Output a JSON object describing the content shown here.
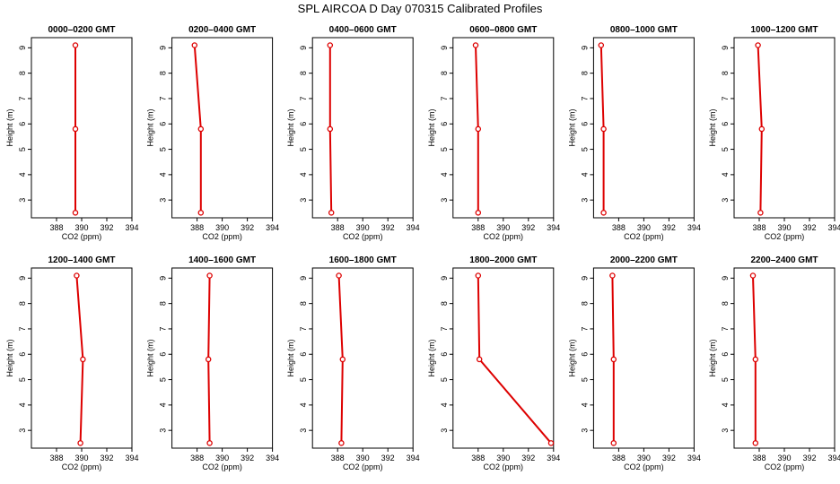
{
  "figure": {
    "title": "SPL AIRCOA D  Day 070315  Calibrated Profiles"
  },
  "colors": {
    "series": "#dd0000",
    "axis": "#000000",
    "background": "#ffffff"
  },
  "chart_data": [
    {
      "type": "line",
      "title": "0000–0200 GMT",
      "xlabel": "CO2 (ppm)",
      "ylabel": "Height (m)",
      "xlim": [
        386,
        394
      ],
      "ylim": [
        2.3,
        9.4
      ],
      "x_ticks": [
        "388",
        "390",
        "392",
        "394"
      ],
      "y_ticks": [
        "3",
        "4",
        "5",
        "6",
        "7",
        "8",
        "9"
      ],
      "series": [
        {
          "x": [
            389.5,
            389.5,
            389.5
          ],
          "y": [
            2.5,
            5.8,
            9.1
          ]
        }
      ]
    },
    {
      "type": "line",
      "title": "0200–0400 GMT",
      "xlabel": "CO2 (ppm)",
      "ylabel": "Height (m)",
      "xlim": [
        386,
        394
      ],
      "ylim": [
        2.3,
        9.4
      ],
      "x_ticks": [
        "388",
        "390",
        "392",
        "394"
      ],
      "y_ticks": [
        "3",
        "4",
        "5",
        "6",
        "7",
        "8",
        "9"
      ],
      "series": [
        {
          "x": [
            388.3,
            388.3,
            387.8
          ],
          "y": [
            2.5,
            5.8,
            9.1
          ]
        }
      ]
    },
    {
      "type": "line",
      "title": "0400–0600 GMT",
      "xlabel": "CO2 (ppm)",
      "ylabel": "Height (m)",
      "xlim": [
        386,
        394
      ],
      "ylim": [
        2.3,
        9.4
      ],
      "x_ticks": [
        "388",
        "390",
        "392",
        "394"
      ],
      "y_ticks": [
        "3",
        "4",
        "5",
        "6",
        "7",
        "8",
        "9"
      ],
      "series": [
        {
          "x": [
            387.5,
            387.4,
            387.4
          ],
          "y": [
            2.5,
            5.8,
            9.1
          ]
        }
      ]
    },
    {
      "type": "line",
      "title": "0600–0800 GMT",
      "xlabel": "CO2 (ppm)",
      "ylabel": "Height (m)",
      "xlim": [
        386,
        394
      ],
      "ylim": [
        2.3,
        9.4
      ],
      "x_ticks": [
        "388",
        "390",
        "392",
        "394"
      ],
      "y_ticks": [
        "3",
        "4",
        "5",
        "6",
        "7",
        "8",
        "9"
      ],
      "series": [
        {
          "x": [
            388.0,
            388.0,
            387.8
          ],
          "y": [
            2.5,
            5.8,
            9.1
          ]
        }
      ]
    },
    {
      "type": "line",
      "title": "0800–1000 GMT",
      "xlabel": "CO2 (ppm)",
      "ylabel": "Height (m)",
      "xlim": [
        386,
        394
      ],
      "ylim": [
        2.3,
        9.4
      ],
      "x_ticks": [
        "388",
        "390",
        "392",
        "394"
      ],
      "y_ticks": [
        "3",
        "4",
        "5",
        "6",
        "7",
        "8",
        "9"
      ],
      "series": [
        {
          "x": [
            386.8,
            386.8,
            386.6
          ],
          "y": [
            2.5,
            5.8,
            9.1
          ]
        }
      ]
    },
    {
      "type": "line",
      "title": "1000–1200 GMT",
      "xlabel": "CO2 (ppm)",
      "ylabel": "Height (m)",
      "xlim": [
        386,
        394
      ],
      "ylim": [
        2.3,
        9.4
      ],
      "x_ticks": [
        "388",
        "390",
        "392",
        "394"
      ],
      "y_ticks": [
        "3",
        "4",
        "5",
        "6",
        "7",
        "8",
        "9"
      ],
      "series": [
        {
          "x": [
            388.1,
            388.2,
            387.9
          ],
          "y": [
            2.5,
            5.8,
            9.1
          ]
        }
      ]
    },
    {
      "type": "line",
      "title": "1200–1400 GMT",
      "xlabel": "CO2 (ppm)",
      "ylabel": "Height (m)",
      "xlim": [
        386,
        394
      ],
      "ylim": [
        2.3,
        9.4
      ],
      "x_ticks": [
        "388",
        "390",
        "392",
        "394"
      ],
      "y_ticks": [
        "3",
        "4",
        "5",
        "6",
        "7",
        "8",
        "9"
      ],
      "series": [
        {
          "x": [
            389.9,
            390.1,
            389.6
          ],
          "y": [
            2.5,
            5.8,
            9.1
          ]
        }
      ]
    },
    {
      "type": "line",
      "title": "1400–1600 GMT",
      "xlabel": "CO2 (ppm)",
      "ylabel": "Height (m)",
      "xlim": [
        386,
        394
      ],
      "ylim": [
        2.3,
        9.4
      ],
      "x_ticks": [
        "388",
        "390",
        "392",
        "394"
      ],
      "y_ticks": [
        "3",
        "4",
        "5",
        "6",
        "7",
        "8",
        "9"
      ],
      "series": [
        {
          "x": [
            389.0,
            388.9,
            389.0
          ],
          "y": [
            2.5,
            5.8,
            9.1
          ]
        }
      ]
    },
    {
      "type": "line",
      "title": "1600–1800 GMT",
      "xlabel": "CO2 (ppm)",
      "ylabel": "Height (m)",
      "xlim": [
        386,
        394
      ],
      "ylim": [
        2.3,
        9.4
      ],
      "x_ticks": [
        "388",
        "390",
        "392",
        "394"
      ],
      "y_ticks": [
        "3",
        "4",
        "5",
        "6",
        "7",
        "8",
        "9"
      ],
      "series": [
        {
          "x": [
            388.3,
            388.4,
            388.1
          ],
          "y": [
            2.5,
            5.8,
            9.1
          ]
        }
      ]
    },
    {
      "type": "line",
      "title": "1800–2000 GMT",
      "xlabel": "CO2 (ppm)",
      "ylabel": "Height (m)",
      "xlim": [
        386,
        394
      ],
      "ylim": [
        2.3,
        9.4
      ],
      "x_ticks": [
        "388",
        "390",
        "392",
        "394"
      ],
      "y_ticks": [
        "3",
        "4",
        "5",
        "6",
        "7",
        "8",
        "9"
      ],
      "series": [
        {
          "x": [
            393.8,
            388.1,
            388.0
          ],
          "y": [
            2.5,
            5.8,
            9.1
          ]
        }
      ]
    },
    {
      "type": "line",
      "title": "2000–2200 GMT",
      "xlabel": "CO2 (ppm)",
      "ylabel": "Height (m)",
      "xlim": [
        386,
        394
      ],
      "ylim": [
        2.3,
        9.4
      ],
      "x_ticks": [
        "388",
        "390",
        "392",
        "394"
      ],
      "y_ticks": [
        "3",
        "4",
        "5",
        "6",
        "7",
        "8",
        "9"
      ],
      "series": [
        {
          "x": [
            387.6,
            387.6,
            387.5
          ],
          "y": [
            2.5,
            5.8,
            9.1
          ]
        }
      ]
    },
    {
      "type": "line",
      "title": "2200–2400 GMT",
      "xlabel": "CO2 (ppm)",
      "ylabel": "Height (m)",
      "xlim": [
        386,
        394
      ],
      "ylim": [
        2.3,
        9.4
      ],
      "x_ticks": [
        "388",
        "390",
        "392",
        "394"
      ],
      "y_ticks": [
        "3",
        "4",
        "5",
        "6",
        "7",
        "8",
        "9"
      ],
      "series": [
        {
          "x": [
            387.7,
            387.7,
            387.5
          ],
          "y": [
            2.5,
            5.8,
            9.1
          ]
        }
      ]
    }
  ]
}
